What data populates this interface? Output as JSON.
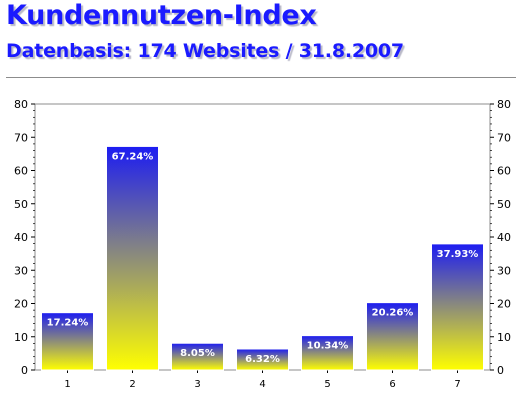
{
  "header": {
    "title": "Kundennutzen-Index",
    "subtitle": "Datenbasis: 174 Websites / 31.8.2007"
  },
  "chart_data": {
    "type": "bar",
    "categories": [
      "1",
      "2",
      "3",
      "4",
      "5",
      "6",
      "7"
    ],
    "values": [
      17.24,
      67.24,
      8.05,
      6.32,
      10.34,
      20.26,
      37.93
    ],
    "data_labels": [
      "17.24%",
      "67.24%",
      "8.05%",
      "6.32%",
      "10.34%",
      "20.26%",
      "37.93%"
    ],
    "title": "Kundennutzen-Index",
    "subtitle": "Datenbasis: 174 Websites / 31.8.2007",
    "xlabel": "",
    "ylabel": "",
    "ylim": [
      0,
      80
    ],
    "yticks": [
      0,
      10,
      20,
      30,
      40,
      50,
      60,
      70,
      80
    ],
    "dual_y_axis": true,
    "grid": false,
    "colors": {
      "bar_top": "#1c1cf2",
      "bar_bottom": "#ffff00",
      "bar_border": "#ffffff"
    }
  }
}
